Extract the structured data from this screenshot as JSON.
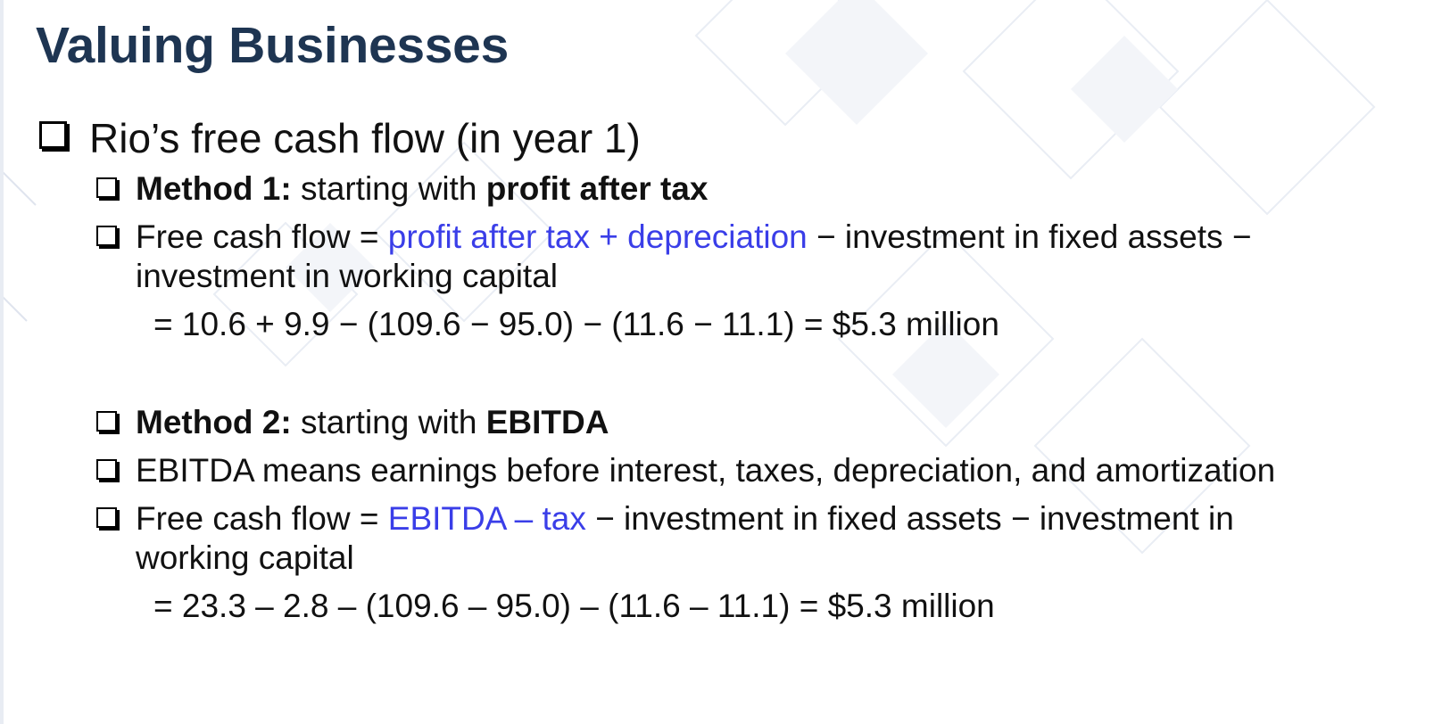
{
  "slide": {
    "title": "Valuing Businesses",
    "main_bullet": "Rio’s free cash flow (in year 1)",
    "method1": {
      "label": "Method 1:",
      "intro": " starting with ",
      "basis": "profit after tax",
      "fcf_prefix": "Free cash flow = ",
      "fcf_highlight": "profit after tax + depreciation",
      "fcf_rest": " − investment in fixed assets −",
      "fcf_continuation": "investment in working capital",
      "calculation": "= 10.6 + 9.9 − (109.6 − 95.0) − (11.6 − 11.1) = $5.3 million"
    },
    "method2": {
      "label": "Method 2:",
      "intro": " starting with ",
      "basis": "EBITDA",
      "definition": "EBITDA means earnings before interest, taxes, depreciation, and amortization",
      "fcf_prefix": "Free cash flow = ",
      "fcf_highlight": "EBITDA – tax",
      "fcf_rest": " − investment in fixed assets − investment in",
      "fcf_continuation": "working capital",
      "calculation": "= 23.3 – 2.8 – (109.6 – 95.0) – (11.6 – 11.1) = $5.3 million"
    }
  },
  "colors": {
    "title": "#1e3552",
    "highlight": "#3a3ee8",
    "text": "#111111"
  }
}
